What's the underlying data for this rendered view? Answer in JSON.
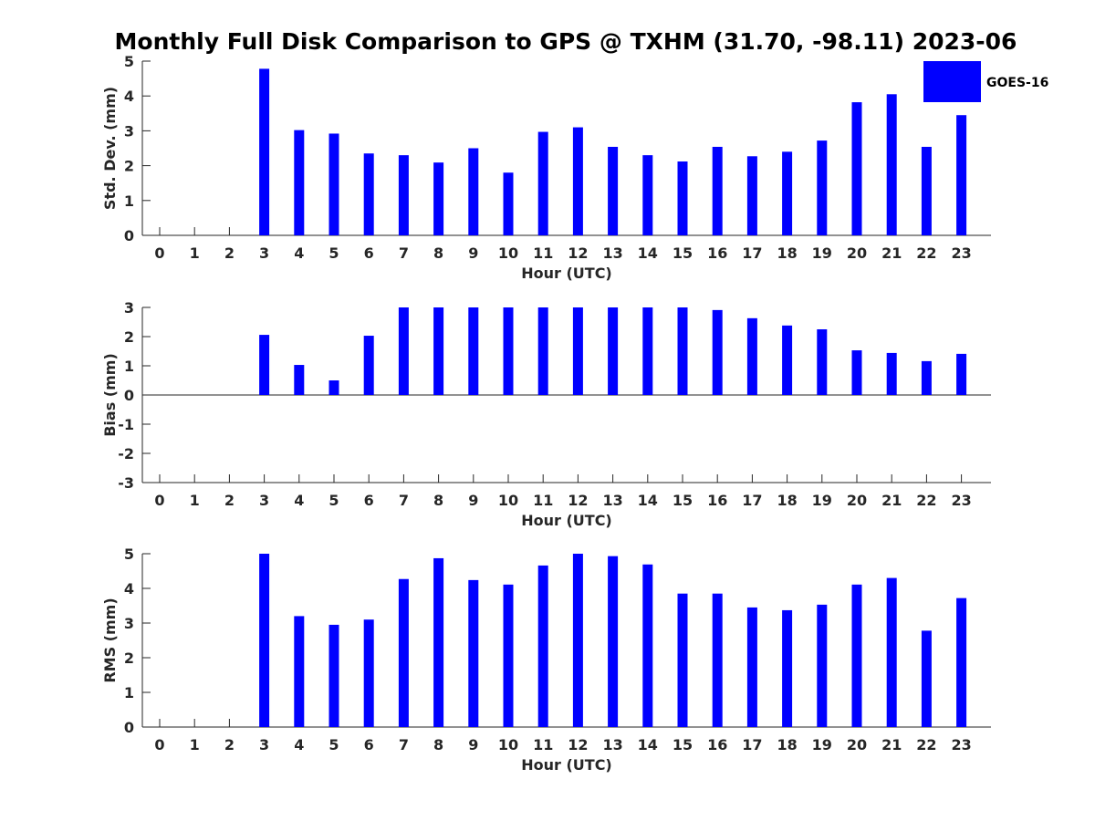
{
  "title": "Monthly Full Disk Comparison to GPS @ TXHM (31.70, -98.11) 2023-06",
  "legend": {
    "label": "GOES-16",
    "placement": "top-right"
  },
  "series_color": "#0000ff",
  "chart_data": [
    {
      "type": "bar",
      "id": "std",
      "xlabel": "Hour (UTC)",
      "ylabel": "Std. Dev. (mm)",
      "ylim": [
        0,
        5
      ],
      "yticks": [
        "0",
        "1",
        "2",
        "3",
        "4",
        "5"
      ],
      "categories": [
        "0",
        "1",
        "2",
        "3",
        "4",
        "5",
        "6",
        "7",
        "8",
        "9",
        "10",
        "11",
        "12",
        "13",
        "14",
        "15",
        "16",
        "17",
        "18",
        "19",
        "20",
        "21",
        "22",
        "23"
      ],
      "series": [
        {
          "name": "GOES-16",
          "values": [
            null,
            null,
            null,
            4.78,
            3.02,
            2.92,
            2.35,
            2.3,
            2.09,
            2.5,
            1.8,
            2.97,
            3.1,
            2.54,
            2.3,
            2.12,
            2.54,
            2.27,
            2.4,
            2.72,
            3.82,
            4.05,
            2.54,
            3.45
          ]
        }
      ],
      "grid": false
    },
    {
      "type": "bar",
      "id": "bias",
      "xlabel": "Hour (UTC)",
      "ylabel": "Bias (mm)",
      "ylim": [
        -3,
        3
      ],
      "yticks": [
        "-3",
        "-2",
        "-1",
        "0",
        "1",
        "2",
        "3"
      ],
      "categories": [
        "0",
        "1",
        "2",
        "3",
        "4",
        "5",
        "6",
        "7",
        "8",
        "9",
        "10",
        "11",
        "12",
        "13",
        "14",
        "15",
        "16",
        "17",
        "18",
        "19",
        "20",
        "21",
        "22",
        "23"
      ],
      "series": [
        {
          "name": "GOES-16",
          "values": [
            null,
            null,
            null,
            2.06,
            1.03,
            0.5,
            2.03,
            3.0,
            3.0,
            3.0,
            3.0,
            3.0,
            3.0,
            3.0,
            3.0,
            3.0,
            2.91,
            2.63,
            2.38,
            2.25,
            1.53,
            1.44,
            1.16,
            1.41
          ]
        }
      ],
      "grid": false
    },
    {
      "type": "bar",
      "id": "rms",
      "xlabel": "Hour (UTC)",
      "ylabel": "RMS (mm)",
      "ylim": [
        0,
        5
      ],
      "yticks": [
        "0",
        "1",
        "2",
        "3",
        "4",
        "5"
      ],
      "categories": [
        "0",
        "1",
        "2",
        "3",
        "4",
        "5",
        "6",
        "7",
        "8",
        "9",
        "10",
        "11",
        "12",
        "13",
        "14",
        "15",
        "16",
        "17",
        "18",
        "19",
        "20",
        "21",
        "22",
        "23"
      ],
      "series": [
        {
          "name": "GOES-16",
          "values": [
            null,
            null,
            null,
            5.0,
            3.2,
            2.95,
            3.1,
            4.27,
            4.87,
            4.24,
            4.11,
            4.66,
            5.0,
            4.93,
            4.69,
            3.85,
            3.85,
            3.45,
            3.37,
            3.53,
            4.11,
            4.3,
            2.78,
            3.72
          ]
        }
      ],
      "grid": false
    }
  ]
}
